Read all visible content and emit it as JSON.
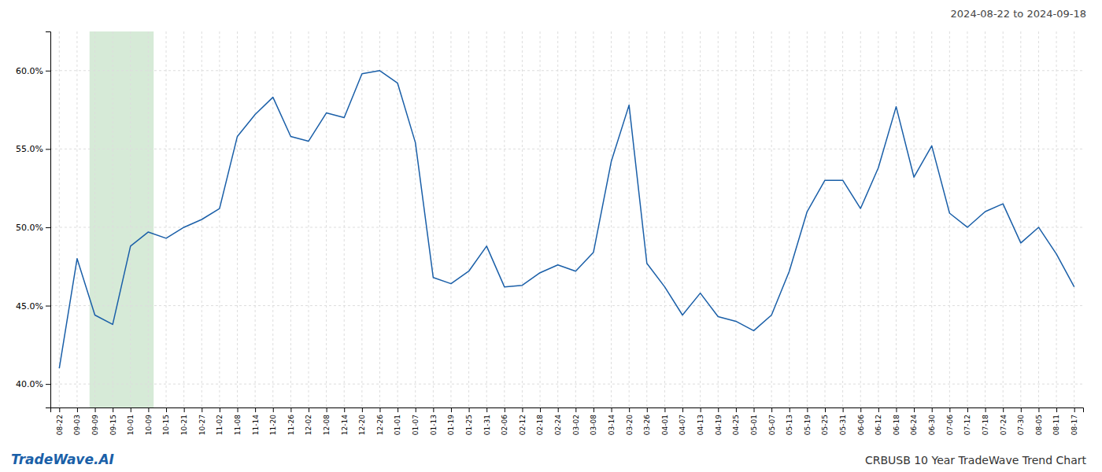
{
  "chart_data": {
    "type": "line",
    "title": "CRBUSB 10 Year TradeWave Trend Chart",
    "subtitle": "2024-08-22 to 2024-09-18",
    "annotations": [
      {
        "text": "TradeWave.AI"
      }
    ],
    "color": "#1a5fa8",
    "grid": true,
    "shade": {
      "from": "09-09",
      "to": "10-09",
      "color": "#d6ead7"
    },
    "ylim": [
      0.385,
      0.625
    ],
    "yticks": [
      {
        "value": 0.4,
        "label": "40.0%"
      },
      {
        "value": 0.45,
        "label": "45.0%"
      },
      {
        "value": 0.5,
        "label": "50.0%"
      },
      {
        "value": 0.55,
        "label": "55.0%"
      },
      {
        "value": 0.6,
        "label": "60.0%"
      }
    ],
    "categories": [
      "08-22",
      "09-03",
      "09-09",
      "09-15",
      "10-01",
      "10-09",
      "10-15",
      "10-21",
      "10-27",
      "11-02",
      "11-08",
      "11-14",
      "11-20",
      "11-26",
      "12-02",
      "12-08",
      "12-14",
      "12-20",
      "12-26",
      "01-01",
      "01-07",
      "01-13",
      "01-19",
      "01-25",
      "01-31",
      "02-06",
      "02-12",
      "02-18",
      "02-24",
      "03-02",
      "03-08",
      "03-14",
      "03-20",
      "03-26",
      "04-01",
      "04-07",
      "04-13",
      "04-19",
      "04-25",
      "05-01",
      "05-07",
      "05-13",
      "05-19",
      "05-25",
      "05-31",
      "06-06",
      "06-12",
      "06-18",
      "06-24",
      "06-30",
      "07-06",
      "07-12",
      "07-18",
      "07-24",
      "07-30",
      "08-05",
      "08-11",
      "08-17"
    ],
    "values": [
      0.41,
      0.48,
      0.444,
      0.438,
      0.488,
      0.497,
      0.493,
      0.5,
      0.505,
      0.512,
      0.558,
      0.572,
      0.583,
      0.558,
      0.555,
      0.573,
      0.57,
      0.598,
      0.6,
      0.592,
      0.554,
      0.468,
      0.464,
      0.472,
      0.488,
      0.462,
      0.463,
      0.471,
      0.476,
      0.472,
      0.484,
      0.542,
      0.578,
      0.477,
      0.462,
      0.444,
      0.458,
      0.443,
      0.44,
      0.434,
      0.444,
      0.472,
      0.51,
      0.53,
      0.53,
      0.512,
      0.538,
      0.577,
      0.532,
      0.552,
      0.509,
      0.5,
      0.51,
      0.515,
      0.49,
      0.5,
      0.483,
      0.462
    ]
  }
}
